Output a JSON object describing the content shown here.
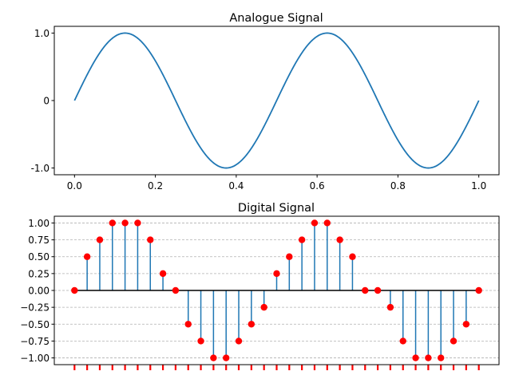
{
  "colors": {
    "line": "#1f77b4",
    "stem": "#1f77b4",
    "marker": "#ff0000",
    "baseline": "#000000",
    "grid": "#b0b0b0",
    "spine": "#000000"
  },
  "chart_data": [
    {
      "type": "line",
      "title": "Analogue Signal",
      "xlabel": "",
      "ylabel": "",
      "xlim": [
        -0.05,
        1.05
      ],
      "ylim": [
        -1.1,
        1.1
      ],
      "xticks": [
        0.0,
        0.2,
        0.4,
        0.6,
        0.8,
        1.0
      ],
      "xtick_labels": [
        "0.0",
        "0.2",
        "0.4",
        "0.6",
        "0.8",
        "1.0"
      ],
      "yticks": [
        1.0,
        0.0,
        -1.0
      ],
      "ytick_labels": [
        "1.0",
        "0",
        "-1.0"
      ],
      "grid": false,
      "legend": "none",
      "function": "sin(2*pi*2*x)",
      "series": [
        {
          "x": [
            0.0,
            0.03125,
            0.0625,
            0.09375,
            0.125,
            0.15625,
            0.1875,
            0.21875,
            0.25,
            0.28125,
            0.3125,
            0.34375,
            0.375,
            0.40625,
            0.4375,
            0.46875,
            0.5,
            0.53125,
            0.5625,
            0.59375,
            0.625,
            0.65625,
            0.6875,
            0.71875,
            0.75,
            0.78125,
            0.8125,
            0.84375,
            0.875,
            0.90625,
            0.9375,
            0.96875,
            1.0
          ],
          "y": [
            0.0,
            0.383,
            0.707,
            0.924,
            1.0,
            0.924,
            0.707,
            0.383,
            0.0,
            -0.383,
            -0.707,
            -0.924,
            -1.0,
            -0.924,
            -0.707,
            -0.383,
            0.0,
            0.383,
            0.707,
            0.924,
            1.0,
            0.924,
            0.707,
            0.383,
            0.0,
            -0.383,
            -0.707,
            -0.924,
            -1.0,
            -0.924,
            -0.707,
            -0.383,
            0.0
          ]
        }
      ]
    },
    {
      "type": "stem",
      "title": "Digital Signal",
      "xlabel": "",
      "ylabel": "",
      "xlim": [
        -0.05,
        1.05
      ],
      "ylim": [
        -1.1,
        1.1
      ],
      "xticks": [],
      "yticks": [
        1.0,
        0.75,
        0.5,
        0.25,
        0.0,
        -0.25,
        -0.5,
        -0.75,
        -1.0
      ],
      "ytick_labels": [
        "1.00",
        "0.75",
        "0.50",
        "0.25",
        "0.00",
        "−0.25",
        "−0.50",
        "−0.75",
        "−1.00"
      ],
      "grid": "horizontal dashed",
      "legend": "none",
      "series": [
        {
          "x": [
            0.0,
            0.03125,
            0.0625,
            0.09375,
            0.125,
            0.15625,
            0.1875,
            0.21875,
            0.25,
            0.28125,
            0.3125,
            0.34375,
            0.375,
            0.40625,
            0.4375,
            0.46875,
            0.5,
            0.53125,
            0.5625,
            0.59375,
            0.625,
            0.65625,
            0.6875,
            0.71875,
            0.75,
            0.78125,
            0.8125,
            0.84375,
            0.875,
            0.90625,
            0.9375,
            0.96875,
            1.0
          ],
          "y": [
            0.0,
            0.5,
            0.75,
            1.0,
            1.0,
            1.0,
            0.75,
            0.25,
            0.0,
            -0.5,
            -0.75,
            -1.0,
            -1.0,
            -0.75,
            -0.5,
            -0.25,
            0.25,
            0.5,
            0.75,
            1.0,
            1.0,
            0.75,
            0.5,
            0.0,
            0.0,
            -0.25,
            -0.75,
            -1.0,
            -1.0,
            -1.0,
            -0.75,
            -0.5,
            0.0
          ]
        }
      ]
    }
  ]
}
